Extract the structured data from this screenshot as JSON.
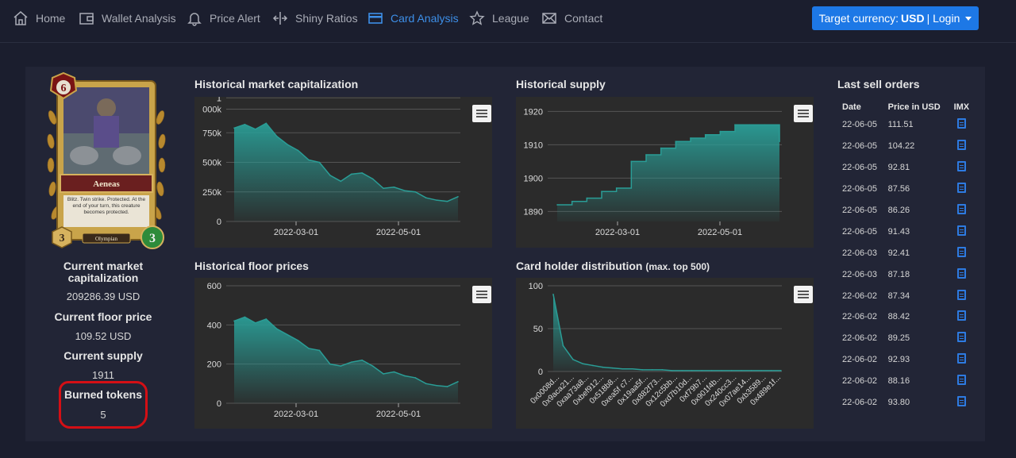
{
  "nav": {
    "items": [
      {
        "label": "Home",
        "icon": "home-icon"
      },
      {
        "label": "Wallet Analysis",
        "icon": "wallet-icon"
      },
      {
        "label": "Price Alert",
        "icon": "bell-icon"
      },
      {
        "label": "Shiny Ratios",
        "icon": "arrows-icon"
      },
      {
        "label": "Card Analysis",
        "icon": "card-icon",
        "active": true
      },
      {
        "label": "League",
        "icon": "star-icon"
      },
      {
        "label": "Contact",
        "icon": "envelope-icon"
      }
    ],
    "target_prefix": "Target currency:",
    "target_currency": "USD",
    "target_suffix": "| Login"
  },
  "card": {
    "name": "Aeneas",
    "mana": "6",
    "text": "Blitz. Twin strike. Protected. At the end of your turn, this creature becomes protected.",
    "attack": "3",
    "health": "3",
    "tribe": "Olympian"
  },
  "stats": {
    "market_cap_label": "Current market capitalization",
    "market_cap_value": "209286.39 USD",
    "floor_price_label": "Current floor price",
    "floor_price_value": "109.52 USD",
    "supply_label": "Current supply",
    "supply_value": "1911",
    "burned_label": "Burned tokens",
    "burned_value": "5"
  },
  "titles": {
    "market_cap": "Historical market capitalization",
    "supply": "Historical supply",
    "floor": "Historical floor prices",
    "holders": "Card holder distribution",
    "holders_note": "(max. top 500)",
    "orders": "Last sell orders"
  },
  "colors": {
    "accent": "#1d78e6",
    "area": "#2a9d96",
    "highlight": "#d40f15"
  },
  "chart_data": [
    {
      "type": "area",
      "title": "Historical market capitalization",
      "x_ticks": [
        "2022-03-01",
        "2022-05-01"
      ],
      "y_ticks": [
        "0",
        "250k",
        "500k",
        "750k",
        "000k",
        "1"
      ],
      "ylim": [
        0,
        1000000
      ],
      "x": [
        "2022-01-12",
        "2022-01-20",
        "2022-01-28",
        "2022-02-05",
        "2022-02-10",
        "2022-02-15",
        "2022-02-20",
        "2022-02-25",
        "2022-03-01",
        "2022-03-05",
        "2022-03-12",
        "2022-03-20",
        "2022-03-28",
        "2022-04-05",
        "2022-04-12",
        "2022-04-20",
        "2022-04-28",
        "2022-05-05",
        "2022-05-12",
        "2022-05-20",
        "2022-05-28",
        "2022-06-05"
      ],
      "values": [
        790000,
        820000,
        780000,
        830000,
        720000,
        650000,
        600000,
        520000,
        500000,
        390000,
        340000,
        400000,
        410000,
        360000,
        280000,
        290000,
        260000,
        250000,
        200000,
        180000,
        170000,
        209286
      ]
    },
    {
      "type": "area",
      "title": "Historical supply",
      "x_ticks": [
        "2022-03-01",
        "2022-05-01"
      ],
      "y_ticks": [
        "1890",
        "1900",
        "1910",
        "1920"
      ],
      "ylim": [
        1887,
        1922
      ],
      "x": [
        "2022-01-12",
        "2022-01-25",
        "2022-02-05",
        "2022-02-15",
        "2022-02-25",
        "2022-03-01",
        "2022-03-10",
        "2022-03-20",
        "2022-04-01",
        "2022-04-10",
        "2022-04-20",
        "2022-05-01",
        "2022-05-10",
        "2022-05-20",
        "2022-05-28",
        "2022-06-05"
      ],
      "values": [
        1892,
        1893,
        1894,
        1896,
        1897,
        1905,
        1907,
        1909,
        1911,
        1912,
        1913,
        1914,
        1916,
        1916,
        1916,
        1911
      ]
    },
    {
      "type": "area",
      "title": "Historical floor prices",
      "x_ticks": [
        "2022-03-01",
        "2022-05-01"
      ],
      "y_ticks": [
        "0",
        "200",
        "400",
        "600"
      ],
      "ylim": [
        0,
        600
      ],
      "x": [
        "2022-01-12",
        "2022-01-20",
        "2022-01-28",
        "2022-02-05",
        "2022-02-10",
        "2022-02-15",
        "2022-02-20",
        "2022-02-25",
        "2022-03-01",
        "2022-03-05",
        "2022-03-12",
        "2022-03-20",
        "2022-03-28",
        "2022-04-05",
        "2022-04-12",
        "2022-04-20",
        "2022-04-28",
        "2022-05-05",
        "2022-05-12",
        "2022-05-20",
        "2022-05-28",
        "2022-06-05"
      ],
      "values": [
        420,
        440,
        410,
        430,
        380,
        350,
        320,
        280,
        270,
        200,
        190,
        210,
        220,
        190,
        150,
        160,
        140,
        130,
        100,
        90,
        85,
        110
      ]
    },
    {
      "type": "area",
      "title": "Card holder distribution",
      "x_ticks": [
        "0x0008d...",
        "0x9aca21...",
        "0xaa73a8...",
        "0xbef912...",
        "0x518b8...",
        "0xea5f c7...",
        "0x19aa5f...",
        "0x882f73...",
        "0x12c5bb...",
        "0xd7b10d...",
        "0xf79b7...",
        "0x901f4b...",
        "0x240cc3...",
        "0x07ae14...",
        "0xb3589...",
        "0x489e1f..."
      ],
      "y_ticks": [
        "0",
        "50",
        "100"
      ],
      "ylim": [
        0,
        100
      ],
      "values": [
        90,
        30,
        14,
        9,
        7,
        5,
        4,
        3,
        3,
        2,
        2,
        2,
        1,
        1,
        1,
        1,
        1,
        1,
        1,
        1,
        1,
        1,
        1,
        1
      ]
    }
  ],
  "orders": {
    "headers": [
      "Date",
      "Price in USD",
      "IMX"
    ],
    "rows": [
      [
        "22-06-05",
        "111.51"
      ],
      [
        "22-06-05",
        "104.22"
      ],
      [
        "22-06-05",
        "92.81"
      ],
      [
        "22-06-05",
        "87.56"
      ],
      [
        "22-06-05",
        "86.26"
      ],
      [
        "22-06-05",
        "91.43"
      ],
      [
        "22-06-03",
        "92.41"
      ],
      [
        "22-06-03",
        "87.18"
      ],
      [
        "22-06-02",
        "87.34"
      ],
      [
        "22-06-02",
        "88.42"
      ],
      [
        "22-06-02",
        "89.25"
      ],
      [
        "22-06-02",
        "92.93"
      ],
      [
        "22-06-02",
        "88.16"
      ],
      [
        "22-06-02",
        "93.80"
      ]
    ]
  }
}
